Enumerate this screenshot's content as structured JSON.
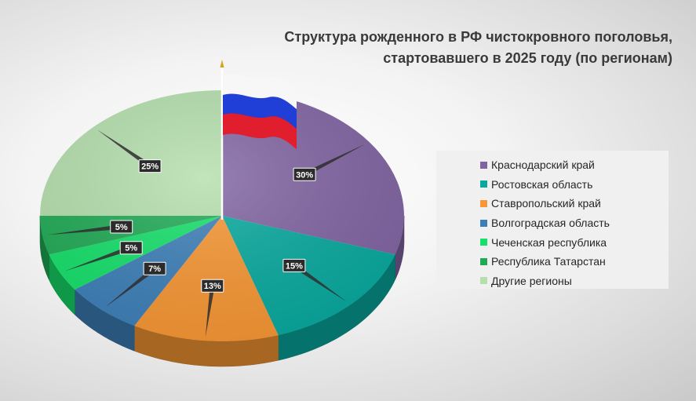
{
  "chart_data": {
    "type": "pie",
    "title": "Структура рожденного в РФ чистокровного поголовья,",
    "subtitle": "стартовавшего в 2025 году (по регионам)",
    "categories": [
      "Краснодарский край",
      "Ростовская область",
      "Ставропольский край",
      "Волгоградская область",
      "Чеченская республика",
      "Республика Татарстан",
      "Другие регионы"
    ],
    "values": [
      30,
      15,
      13,
      7,
      5,
      5,
      25
    ],
    "labels": [
      "30%",
      "15%",
      "13%",
      "7%",
      "5%",
      "5%",
      "25%"
    ],
    "colors": [
      "#8064a2",
      "#07a99e",
      "#f79633",
      "#3c7fb8",
      "#14e06a",
      "#1faa55",
      "#b5dfad"
    ],
    "legend_position": "right",
    "decoration": "russian-flag-icon"
  }
}
